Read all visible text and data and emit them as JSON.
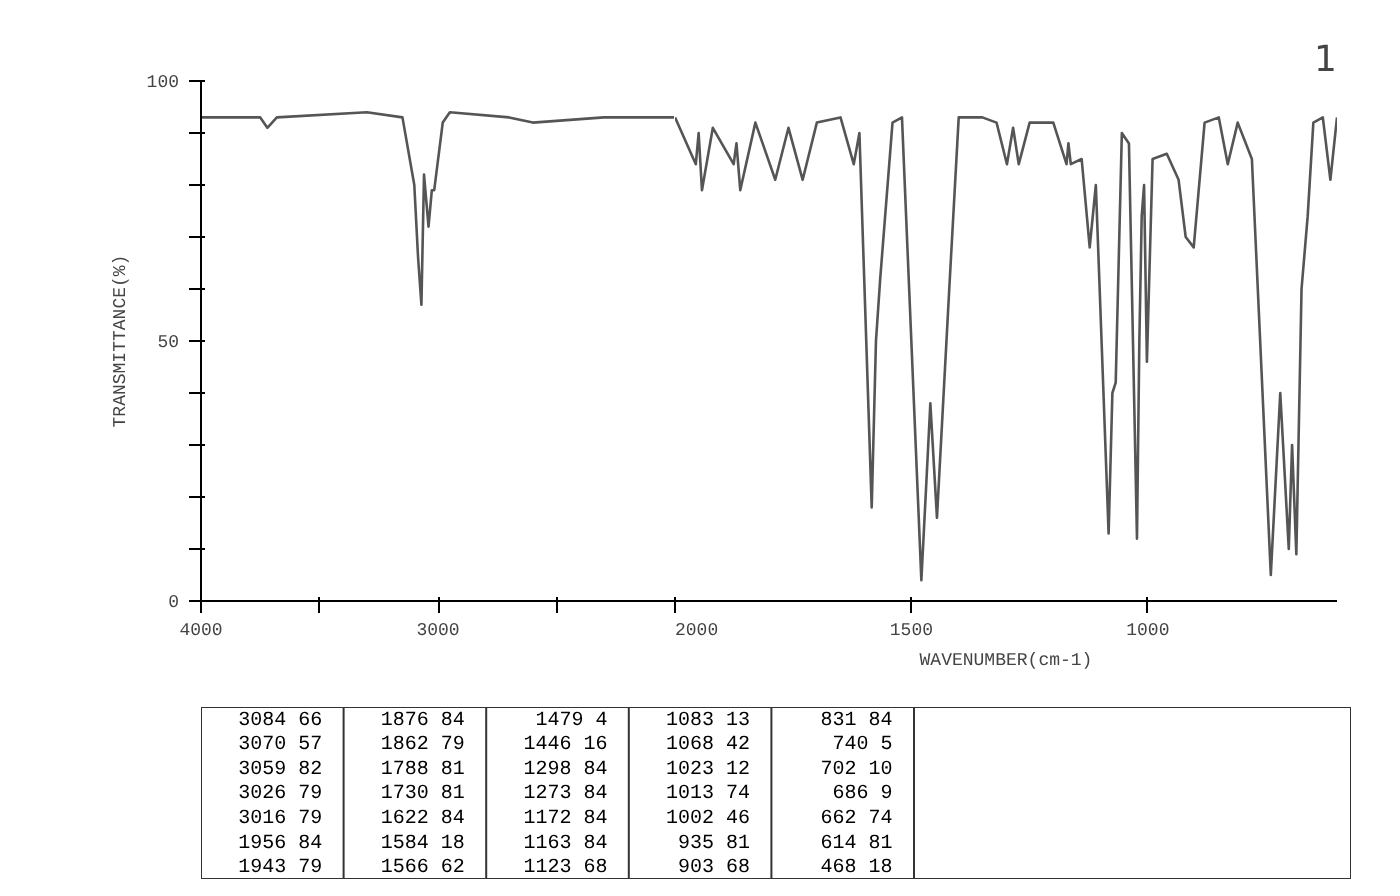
{
  "chart_data": [
    {
      "type": "line",
      "ylabel": "TRANSMITTANCE(%)",
      "x": [
        4000,
        3750,
        3720,
        3680,
        3300,
        3150,
        3100,
        3084,
        3070,
        3059,
        3040,
        3026,
        3016,
        2980,
        2950,
        2700,
        2600,
        2300,
        2000
      ],
      "series": [
        {
          "color": "#555555",
          "values": [
            93,
            93,
            91,
            93,
            94,
            93,
            80,
            66,
            57,
            82,
            72,
            79,
            79,
            92,
            94,
            93,
            92,
            93,
            93
          ]
        }
      ],
      "xlim": [
        4000,
        2000
      ],
      "xticks": [
        4000,
        {
          "value": 3500,
          "label": null
        },
        3000,
        {
          "value": 2500,
          "label": null
        }
      ],
      "ylim": [
        0,
        100
      ],
      "yticks": [
        {
          "value": 0,
          "label": "0"
        },
        {
          "value": 10,
          "label": null
        },
        {
          "value": 20,
          "label": null
        },
        {
          "value": 30,
          "label": null
        },
        {
          "value": 40,
          "label": null
        },
        50,
        {
          "value": 60,
          "label": null
        },
        {
          "value": 70,
          "label": null
        },
        {
          "value": 80,
          "label": null
        },
        {
          "value": 90,
          "label": null
        },
        100
      ],
      "line_style": "solid"
    },
    {
      "type": "line",
      "xlabel": "WAVENUMBER(cm-1)",
      "x": [
        2000,
        1956,
        1950,
        1943,
        1920,
        1876,
        1870,
        1862,
        1830,
        1788,
        1760,
        1730,
        1700,
        1650,
        1622,
        1610,
        1584,
        1575,
        1566,
        1540,
        1520,
        1479,
        1470,
        1460,
        1446,
        1420,
        1400,
        1350,
        1320,
        1298,
        1285,
        1273,
        1250,
        1200,
        1172,
        1168,
        1163,
        1140,
        1123,
        1110,
        1083,
        1075,
        1068,
        1055,
        1040,
        1023,
        1018,
        1013,
        1008,
        1002,
        990,
        960,
        935,
        920,
        903,
        880,
        850,
        831,
        810,
        780,
        740,
        720,
        702,
        695,
        686,
        675,
        662,
        650,
        630,
        614,
        600
      ],
      "series": [
        {
          "color": "#555555",
          "values": [
            93,
            84,
            90,
            79,
            91,
            84,
            88,
            79,
            92,
            81,
            91,
            81,
            92,
            93,
            84,
            90,
            18,
            50,
            62,
            92,
            93,
            4,
            20,
            38,
            16,
            60,
            93,
            93,
            92,
            84,
            91,
            84,
            92,
            92,
            84,
            88,
            84,
            85,
            68,
            80,
            13,
            40,
            42,
            90,
            88,
            12,
            50,
            74,
            80,
            46,
            85,
            86,
            81,
            70,
            68,
            92,
            93,
            84,
            92,
            85,
            5,
            40,
            10,
            30,
            9,
            60,
            74,
            92,
            93,
            81,
            93
          ]
        }
      ],
      "xlim": [
        2000,
        600
      ],
      "xticks": [
        2000,
        1500,
        1000
      ],
      "ylim": [
        0,
        100
      ],
      "tick_labels": "x",
      "line_style": "solid",
      "annotations": [
        "1"
      ]
    },
    {
      "type": "other",
      "annotations": [
        "3084 66",
        "3070 57",
        "3059 82",
        "3026 79",
        "3016 79",
        "1956 84",
        "1943 79",
        "1876 84",
        "1862 79",
        "1788 81",
        "1730 81",
        "1622 84",
        "1584 18",
        "1566 62",
        "1479 4",
        "1446 16",
        "1298 84",
        "1273 84",
        "1172 84",
        "1163 84",
        "1123 68",
        "1083 13",
        "1068 42",
        "1023 12",
        "1013 74",
        "1002 46",
        "935 81",
        "903 68",
        "831 84",
        "740 5",
        "702 10",
        "686 9",
        "662 74",
        "614 81",
        "468 18"
      ]
    }
  ]
}
